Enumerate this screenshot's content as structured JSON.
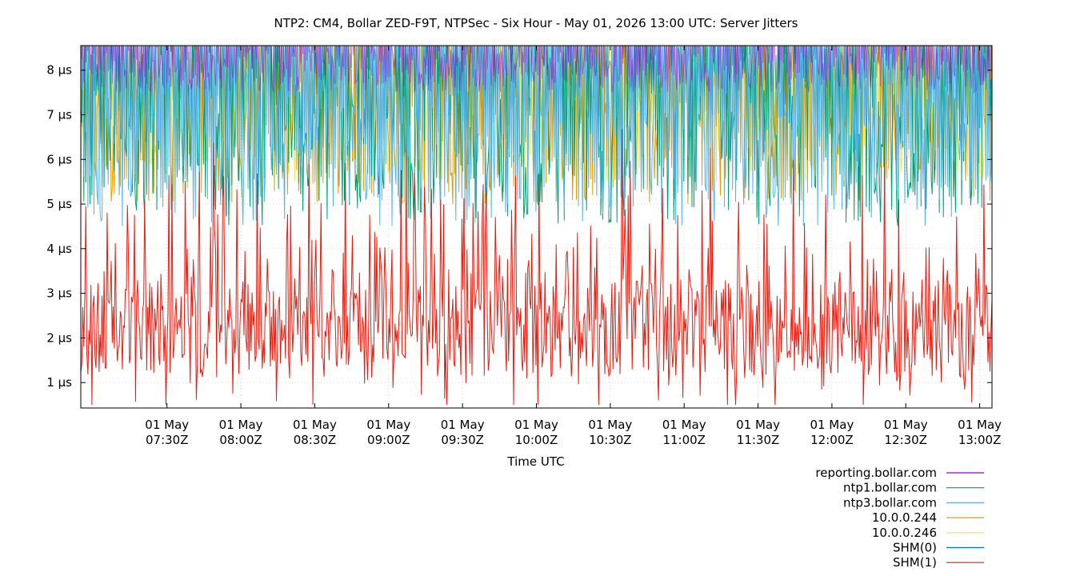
{
  "chart_data": {
    "type": "line",
    "title": "NTP2: CM4, Bollar ZED-F9T, NTPSec - Six Hour - May 01, 2026 13:00 UTC: Server Jitters",
    "xlabel": "Time UTC",
    "ylabel": "",
    "x_range": [
      "2026-05-01T06:55:00Z",
      "2026-05-01T13:05:00Z"
    ],
    "ylim": [
      0.43,
      8.55
    ],
    "y_unit": "µs",
    "grid": true,
    "legend_position": "bottom-right",
    "y_ticks": [
      {
        "value": 1,
        "label": "1 µs"
      },
      {
        "value": 2,
        "label": "2 µs"
      },
      {
        "value": 3,
        "label": "3 µs"
      },
      {
        "value": 4,
        "label": "4 µs"
      },
      {
        "value": 5,
        "label": "5 µs"
      },
      {
        "value": 6,
        "label": "6 µs"
      },
      {
        "value": 7,
        "label": "7 µs"
      },
      {
        "value": 8,
        "label": "8 µs"
      }
    ],
    "x_ticks": [
      {
        "value": "2026-05-01T07:30:00Z",
        "line1": "01 May",
        "line2": "07:30Z"
      },
      {
        "value": "2026-05-01T08:00:00Z",
        "line1": "01 May",
        "line2": "08:00Z"
      },
      {
        "value": "2026-05-01T08:30:00Z",
        "line1": "01 May",
        "line2": "08:30Z"
      },
      {
        "value": "2026-05-01T09:00:00Z",
        "line1": "01 May",
        "line2": "09:00Z"
      },
      {
        "value": "2026-05-01T09:30:00Z",
        "line1": "01 May",
        "line2": "09:30Z"
      },
      {
        "value": "2026-05-01T10:00:00Z",
        "line1": "01 May",
        "line2": "10:00Z"
      },
      {
        "value": "2026-05-01T10:30:00Z",
        "line1": "01 May",
        "line2": "10:30Z"
      },
      {
        "value": "2026-05-01T11:00:00Z",
        "line1": "01 May",
        "line2": "11:00Z"
      },
      {
        "value": "2026-05-01T11:30:00Z",
        "line1": "01 May",
        "line2": "11:30Z"
      },
      {
        "value": "2026-05-01T12:00:00Z",
        "line1": "01 May",
        "line2": "12:00Z"
      },
      {
        "value": "2026-05-01T12:30:00Z",
        "line1": "01 May",
        "line2": "12:30Z"
      },
      {
        "value": "2026-05-01T13:00:00Z",
        "line1": "01 May",
        "line2": "13:00Z"
      }
    ],
    "series": [
      {
        "name": "reporting.bollar.com",
        "color": "#9400d3",
        "typical_range": [
          7.5,
          8.55
        ]
      },
      {
        "name": "ntp1.bollar.com",
        "color": "#009e73",
        "typical_range": [
          4.5,
          8.55
        ]
      },
      {
        "name": "ntp3.bollar.com",
        "color": "#56b4e9",
        "typical_range": [
          4.5,
          8.55
        ]
      },
      {
        "name": "10.0.0.244",
        "color": "#e69f00",
        "typical_range": [
          5.0,
          8.55
        ]
      },
      {
        "name": "10.0.0.246",
        "color": "#f0e442",
        "typical_range": [
          5.5,
          8.55
        ]
      },
      {
        "name": "SHM(0)",
        "color": "#0072b2",
        "typical_range": [
          1.0,
          3.0
        ]
      },
      {
        "name": "SHM(1)",
        "color": "#e51e10",
        "typical_range": [
          0.5,
          6.5
        ],
        "typical_mean": 2.2
      }
    ]
  }
}
